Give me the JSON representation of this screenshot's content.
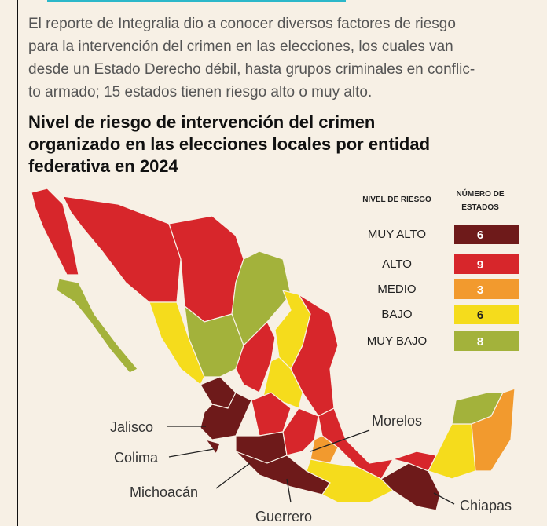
{
  "intro": [
    "El reporte de Integralia dio a conocer diversos factores de riesgo",
    "para la intervención del crimen en las elecciones, los cuales van",
    "desde un Estado Derecho débil, hasta grupos criminales en conflic-",
    "to armado; 15 estados tienen riesgo alto o muy alto."
  ],
  "title": [
    "Nivel de riesgo de intervención del crimen",
    "organizado en las elecciones locales por entidad",
    "federativa en 2024"
  ],
  "legend": {
    "level_header": "NIVEL DE RIESGO",
    "count_header": [
      "NÚMERO DE",
      "ESTADOS"
    ],
    "rows": [
      {
        "label": "MUY ALTO",
        "count": "6",
        "color": "#6e1a1a"
      },
      {
        "label": "ALTO",
        "count": "9",
        "color": "#d7262b"
      },
      {
        "label": "MEDIO",
        "count": "3",
        "color": "#f29a2e"
      },
      {
        "label": "BAJO",
        "count": "6",
        "color": "#f5dc1c"
      },
      {
        "label": "MUY BAJO",
        "count": "8",
        "color": "#a3b23b"
      }
    ]
  },
  "states": [
    "Jalisco",
    "Colima",
    "Michoacán",
    "Guerrero",
    "Morelos",
    "Chiapas"
  ]
}
